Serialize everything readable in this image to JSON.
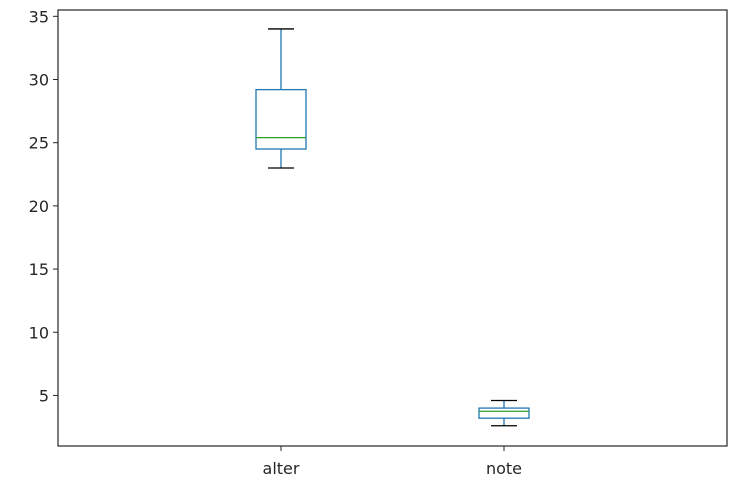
{
  "chart_data": {
    "type": "box",
    "categories": [
      "alter",
      "note"
    ],
    "boxes": [
      {
        "category": "alter",
        "min": 23.0,
        "q1": 24.5,
        "median": 25.4,
        "q3": 29.2,
        "max": 34.0
      },
      {
        "category": "note",
        "min": 2.6,
        "q1": 3.2,
        "median": 3.75,
        "q3": 4.0,
        "max": 4.6
      }
    ],
    "ylim": [
      1.0,
      35.5
    ],
    "yticks": [
      5,
      10,
      15,
      20,
      25,
      30,
      35
    ],
    "colors": {
      "box": "#1f77b4",
      "median": "#2ca02c",
      "whisker": "#1f77b4",
      "cap": "#000000",
      "axis": "#262626"
    },
    "grid": false
  }
}
